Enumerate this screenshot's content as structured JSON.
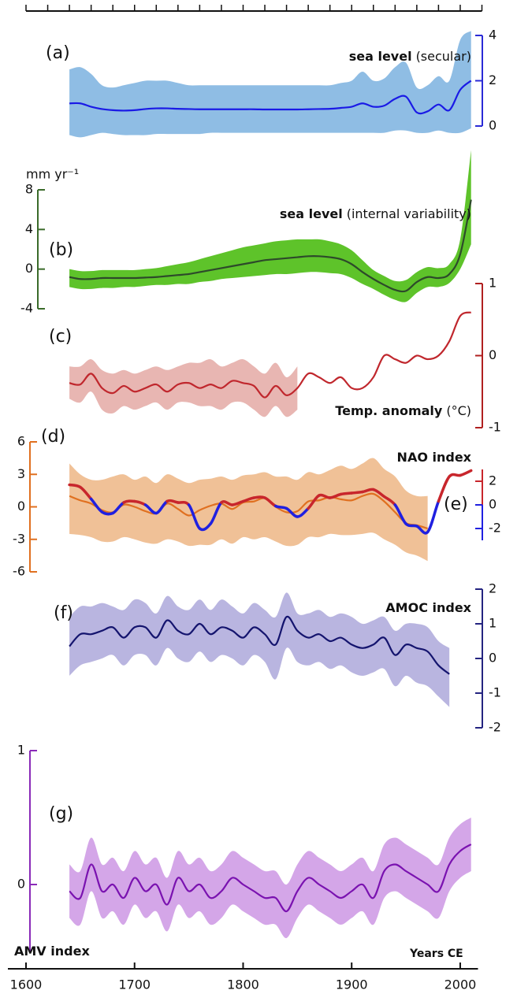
{
  "chart_data": {
    "type": "multi-panel",
    "x_axis": {
      "label": "Years CE",
      "xlim": [
        1600,
        2020
      ],
      "xticks": [
        1600,
        1700,
        1800,
        1900,
        2000
      ],
      "top_xticks": [
        1600,
        1620,
        1640,
        1660,
        1680,
        1700,
        1720,
        1740,
        1760,
        1780,
        1800,
        1820,
        1840,
        1860,
        1880,
        1900,
        1920,
        1940,
        1960,
        1980,
        2000,
        2020
      ]
    },
    "x": [
      1640,
      1650,
      1660,
      1670,
      1680,
      1690,
      1700,
      1710,
      1720,
      1730,
      1740,
      1750,
      1760,
      1770,
      1780,
      1790,
      1800,
      1810,
      1820,
      1830,
      1840,
      1850,
      1860,
      1870,
      1880,
      1890,
      1900,
      1910,
      1920,
      1930,
      1940,
      1950,
      1960,
      1970,
      1980,
      1990,
      2000,
      2010
    ],
    "panels": [
      {
        "type": "line",
        "label": "(a)",
        "title_bold": "sea level",
        "title_rest": "(secular)",
        "ylim": [
          0,
          4
        ],
        "yticks": [
          0,
          2,
          4
        ],
        "axis_color": "#2b2bd6",
        "band": {
          "color": "#8fbde4",
          "upper": [
            2.5,
            2.6,
            2.3,
            1.8,
            1.7,
            1.8,
            1.9,
            2.0,
            2.0,
            2.0,
            1.9,
            1.8,
            1.8,
            1.8,
            1.8,
            1.8,
            1.8,
            1.8,
            1.8,
            1.8,
            1.8,
            1.8,
            1.8,
            1.8,
            1.8,
            1.9,
            2.0,
            2.4,
            2.0,
            2.1,
            2.6,
            2.8,
            1.7,
            1.8,
            2.2,
            2.0,
            3.8,
            4.2
          ],
          "lower": [
            -0.4,
            -0.5,
            -0.4,
            -0.3,
            -0.35,
            -0.4,
            -0.4,
            -0.4,
            -0.35,
            -0.35,
            -0.35,
            -0.35,
            -0.35,
            -0.3,
            -0.3,
            -0.3,
            -0.3,
            -0.3,
            -0.3,
            -0.3,
            -0.3,
            -0.3,
            -0.3,
            -0.3,
            -0.3,
            -0.3,
            -0.3,
            -0.3,
            -0.3,
            -0.3,
            -0.2,
            -0.2,
            -0.3,
            -0.3,
            -0.2,
            -0.3,
            -0.3,
            -0.1
          ]
        },
        "series": [
          {
            "color": "#1a1ae6",
            "values": [
              1.0,
              1.0,
              0.85,
              0.75,
              0.7,
              0.68,
              0.7,
              0.75,
              0.78,
              0.78,
              0.76,
              0.75,
              0.74,
              0.74,
              0.74,
              0.74,
              0.74,
              0.74,
              0.73,
              0.73,
              0.73,
              0.73,
              0.74,
              0.75,
              0.76,
              0.8,
              0.85,
              1.0,
              0.85,
              0.9,
              1.2,
              1.3,
              0.6,
              0.65,
              0.95,
              0.7,
              1.6,
              2.0
            ]
          }
        ]
      },
      {
        "type": "line",
        "label": "(b)",
        "title_bold": "sea level",
        "title_rest": "(internal variability)",
        "ylabel": "mm yr⁻¹",
        "ylim": [
          -4,
          8
        ],
        "yticks": [
          -4,
          0,
          4,
          8
        ],
        "axis_color": "#3a6b2a",
        "band": {
          "color": "#5ec32a",
          "upper": [
            0.0,
            -0.2,
            -0.2,
            -0.1,
            -0.1,
            -0.1,
            -0.1,
            0.0,
            0.1,
            0.3,
            0.5,
            0.7,
            1.0,
            1.3,
            1.6,
            1.9,
            2.2,
            2.4,
            2.6,
            2.8,
            2.9,
            3.0,
            3.0,
            3.0,
            2.8,
            2.5,
            1.9,
            0.9,
            -0.1,
            -0.7,
            -1.2,
            -1.1,
            -0.3,
            0.2,
            0.1,
            0.5,
            3.0,
            12.0
          ],
          "lower": [
            -1.8,
            -2.0,
            -2.0,
            -1.9,
            -1.9,
            -1.8,
            -1.8,
            -1.7,
            -1.6,
            -1.6,
            -1.5,
            -1.5,
            -1.3,
            -1.2,
            -1.0,
            -0.9,
            -0.8,
            -0.7,
            -0.6,
            -0.5,
            -0.5,
            -0.4,
            -0.3,
            -0.3,
            -0.4,
            -0.5,
            -0.9,
            -1.5,
            -2.0,
            -2.6,
            -3.1,
            -3.3,
            -2.4,
            -1.8,
            -1.8,
            -1.4,
            0.0,
            2.5
          ]
        },
        "series": [
          {
            "color": "#2d4a2a",
            "values": [
              -0.8,
              -1.0,
              -1.0,
              -0.9,
              -0.9,
              -0.9,
              -0.9,
              -0.85,
              -0.8,
              -0.7,
              -0.6,
              -0.5,
              -0.3,
              -0.1,
              0.1,
              0.3,
              0.5,
              0.7,
              0.9,
              1.0,
              1.1,
              1.2,
              1.3,
              1.3,
              1.2,
              1.0,
              0.5,
              -0.3,
              -1.0,
              -1.6,
              -2.1,
              -2.2,
              -1.3,
              -0.8,
              -0.9,
              -0.5,
              1.5,
              7.0
            ]
          }
        ]
      },
      {
        "type": "line",
        "label": "(c)",
        "title_bold": "Temp. anomaly",
        "title_rest": "(°C)",
        "ylim": [
          -1,
          1
        ],
        "yticks": [
          -1,
          0,
          1
        ],
        "axis_color": "#b02020",
        "band": {
          "color": "#e8b6b2",
          "upper": [
            -0.15,
            -0.15,
            -0.05,
            -0.2,
            -0.25,
            -0.2,
            -0.25,
            -0.2,
            -0.15,
            -0.2,
            -0.15,
            -0.1,
            -0.1,
            -0.05,
            -0.15,
            -0.1,
            -0.05,
            -0.15,
            -0.25,
            -0.1,
            -0.3,
            -0.15,
            null,
            null,
            null,
            null,
            null,
            null,
            null,
            null,
            null,
            null,
            null,
            null,
            null,
            null,
            null,
            null
          ],
          "lower": [
            -0.6,
            -0.65,
            -0.5,
            -0.75,
            -0.8,
            -0.7,
            -0.75,
            -0.7,
            -0.65,
            -0.75,
            -0.65,
            -0.65,
            -0.7,
            -0.7,
            -0.75,
            -0.65,
            -0.65,
            -0.75,
            -0.85,
            -0.7,
            -0.85,
            -0.75,
            null,
            null,
            null,
            null,
            null,
            null,
            null,
            null,
            null,
            null,
            null,
            null,
            null,
            null,
            null,
            null
          ]
        },
        "series": [
          {
            "color": "#c0272d",
            "values": [
              -0.38,
              -0.4,
              -0.25,
              -0.45,
              -0.52,
              -0.42,
              -0.5,
              -0.45,
              -0.4,
              -0.5,
              -0.4,
              -0.38,
              -0.45,
              -0.4,
              -0.45,
              -0.35,
              -0.38,
              -0.42,
              -0.58,
              -0.42,
              -0.55,
              -0.45,
              -0.25,
              -0.3,
              -0.38,
              -0.3,
              -0.45,
              -0.45,
              -0.3,
              0.0,
              -0.05,
              -0.1,
              0.0,
              -0.05,
              0.0,
              0.2,
              0.55,
              0.6
            ]
          }
        ]
      },
      {
        "type": "line",
        "label": "(d)",
        "title_bold": "NAO index",
        "ylim": [
          -6,
          6
        ],
        "yticks": [
          -6,
          -3,
          0,
          3,
          6
        ],
        "axis_color": "#e07020",
        "band": {
          "color": "#f0c197",
          "upper": [
            4.0,
            3.0,
            2.5,
            2.5,
            2.8,
            3.0,
            2.5,
            2.8,
            2.2,
            3.0,
            2.6,
            2.2,
            2.5,
            2.6,
            2.8,
            2.5,
            2.9,
            3.0,
            3.2,
            2.8,
            2.8,
            2.5,
            3.2,
            3.0,
            3.4,
            3.8,
            3.5,
            4.0,
            4.5,
            3.5,
            2.8,
            1.5,
            1.0,
            1.0,
            null,
            null,
            null,
            null
          ],
          "lower": [
            -2.5,
            -2.6,
            -2.8,
            -3.2,
            -3.2,
            -2.8,
            -3.0,
            -3.3,
            -3.4,
            -3.0,
            -3.2,
            -3.6,
            -3.5,
            -3.5,
            -3.0,
            -3.4,
            -2.8,
            -3.0,
            -2.8,
            -3.2,
            -3.6,
            -3.5,
            -2.8,
            -2.8,
            -2.5,
            -2.6,
            -2.6,
            -2.5,
            -2.4,
            -3.0,
            -3.5,
            -4.2,
            -4.5,
            -5.0,
            null,
            null,
            null,
            null
          ]
        },
        "series": [
          {
            "color": "#e07020",
            "values": [
              1.0,
              0.6,
              0.3,
              -0.3,
              -0.5,
              0.2,
              0.0,
              -0.4,
              -0.6,
              0.3,
              -0.2,
              -0.8,
              -0.3,
              0.1,
              0.3,
              -0.2,
              0.4,
              0.5,
              0.8,
              0.0,
              -0.5,
              -0.4,
              0.5,
              0.6,
              0.9,
              0.7,
              0.6,
              1.0,
              1.2,
              0.5,
              -0.5,
              -1.5,
              -1.7,
              -2.0,
              null,
              null,
              null,
              null
            ]
          }
        ]
      },
      {
        "type": "line",
        "label": "(e)",
        "ylim": [
          -3,
          3
        ],
        "yticks": [
          -2,
          0,
          2
        ],
        "series": [
          {
            "pos_color": "#c8262c",
            "neg_color": "#2020e0",
            "values": [
              1.7,
              1.5,
              0.5,
              -0.6,
              -0.7,
              0.2,
              0.3,
              0.0,
              -0.7,
              0.3,
              0.2,
              0.0,
              -2.0,
              -1.6,
              0.2,
              0.0,
              0.3,
              0.6,
              0.6,
              -0.1,
              -0.3,
              -1.0,
              -0.3,
              0.8,
              0.6,
              0.9,
              1.0,
              1.1,
              1.3,
              0.7,
              0.0,
              -1.6,
              -1.8,
              -2.3,
              0.3,
              2.4,
              2.5,
              2.9
            ]
          }
        ]
      },
      {
        "type": "line",
        "label": "(f)",
        "title_bold": "AMOC index",
        "ylim": [
          -2,
          2
        ],
        "yticks": [
          -2,
          -1,
          0,
          1,
          2
        ],
        "axis_color": "#242480",
        "band": {
          "color": "#b9b5e0",
          "upper": [
            1.2,
            1.5,
            1.5,
            1.6,
            1.5,
            1.4,
            1.7,
            1.6,
            1.3,
            1.8,
            1.5,
            1.4,
            1.7,
            1.4,
            1.7,
            1.5,
            1.3,
            1.6,
            1.4,
            1.2,
            1.9,
            1.3,
            1.3,
            1.4,
            1.2,
            1.3,
            1.2,
            1.0,
            1.1,
            1.2,
            0.8,
            1.0,
            1.0,
            0.9,
            0.5,
            0.3,
            null,
            null
          ],
          "lower": [
            -0.5,
            -0.2,
            -0.1,
            0.0,
            0.1,
            -0.2,
            0.1,
            0.1,
            -0.2,
            0.3,
            0.0,
            -0.1,
            0.2,
            -0.1,
            0.1,
            0.0,
            -0.2,
            0.1,
            -0.1,
            -0.6,
            0.3,
            -0.1,
            -0.2,
            -0.1,
            -0.3,
            -0.2,
            -0.4,
            -0.5,
            -0.4,
            -0.3,
            -0.8,
            -0.5,
            -0.7,
            -0.8,
            -1.1,
            -1.4,
            null,
            null
          ]
        },
        "series": [
          {
            "color": "#14146e",
            "values": [
              0.35,
              0.7,
              0.7,
              0.8,
              0.9,
              0.6,
              0.9,
              0.9,
              0.6,
              1.1,
              0.8,
              0.7,
              1.0,
              0.7,
              0.9,
              0.8,
              0.6,
              0.9,
              0.7,
              0.4,
              1.2,
              0.8,
              0.6,
              0.7,
              0.5,
              0.6,
              0.4,
              0.3,
              0.4,
              0.6,
              0.1,
              0.4,
              0.3,
              0.2,
              -0.2,
              -0.45,
              null,
              null
            ]
          }
        ]
      },
      {
        "type": "line",
        "label": "(g)",
        "title_bold": "AMV index",
        "ylim": [
          -0.5,
          1
        ],
        "yticks": [
          0,
          1
        ],
        "axis_color": "#8a2ab8",
        "band": {
          "color": "#d4a6e8",
          "upper": [
            0.15,
            0.1,
            0.35,
            0.15,
            0.2,
            0.1,
            0.25,
            0.15,
            0.2,
            0.05,
            0.25,
            0.15,
            0.2,
            0.1,
            0.15,
            0.25,
            0.2,
            0.15,
            0.1,
            0.1,
            0.0,
            0.15,
            0.25,
            0.2,
            0.15,
            0.1,
            0.15,
            0.2,
            0.1,
            0.3,
            0.35,
            0.3,
            0.25,
            0.2,
            0.15,
            0.35,
            0.45,
            0.5
          ],
          "lower": [
            -0.25,
            -0.3,
            -0.05,
            -0.25,
            -0.2,
            -0.3,
            -0.15,
            -0.25,
            -0.2,
            -0.35,
            -0.15,
            -0.25,
            -0.2,
            -0.3,
            -0.25,
            -0.15,
            -0.2,
            -0.25,
            -0.3,
            -0.3,
            -0.4,
            -0.25,
            -0.15,
            -0.2,
            -0.25,
            -0.3,
            -0.25,
            -0.2,
            -0.3,
            -0.1,
            -0.05,
            -0.1,
            -0.15,
            -0.2,
            -0.25,
            -0.05,
            0.05,
            0.1
          ]
        },
        "series": [
          {
            "color": "#7a12b0",
            "values": [
              -0.05,
              -0.1,
              0.15,
              -0.05,
              0.0,
              -0.1,
              0.05,
              -0.05,
              0.0,
              -0.15,
              0.05,
              -0.05,
              0.0,
              -0.1,
              -0.05,
              0.05,
              0.0,
              -0.05,
              -0.1,
              -0.1,
              -0.2,
              -0.05,
              0.05,
              0.0,
              -0.05,
              -0.1,
              -0.05,
              0.0,
              -0.1,
              0.1,
              0.15,
              0.1,
              0.05,
              0.0,
              -0.05,
              0.15,
              0.25,
              0.3
            ]
          }
        ]
      }
    ]
  }
}
